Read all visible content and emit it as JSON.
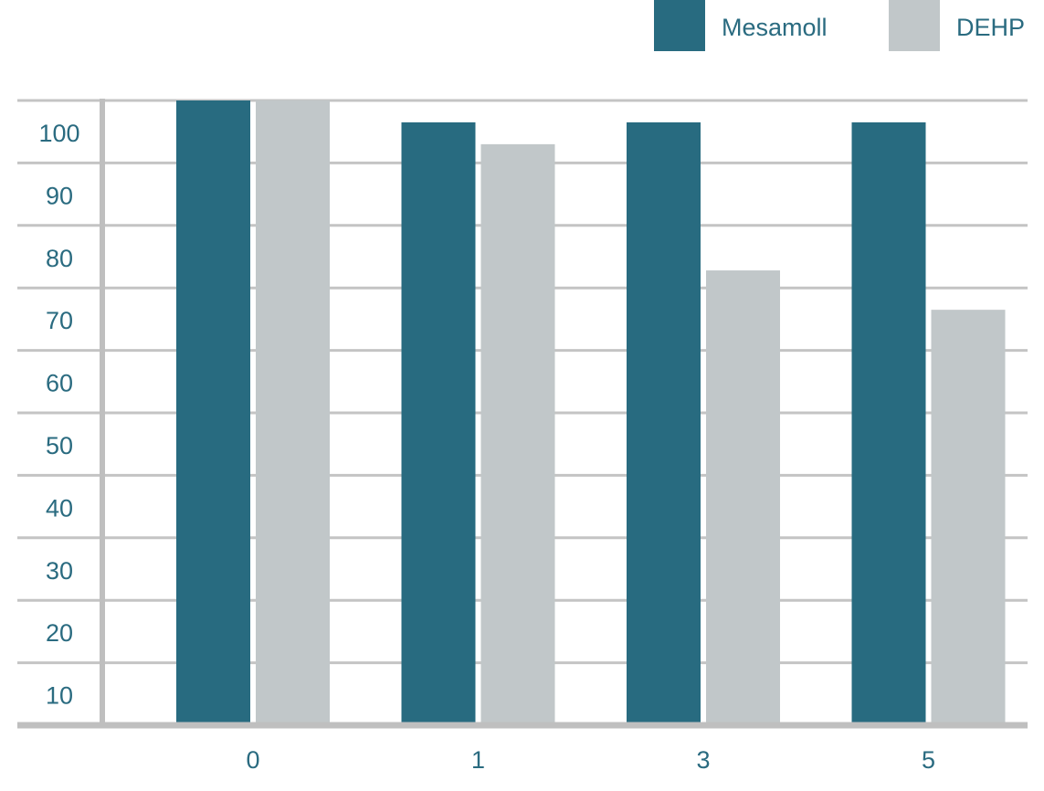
{
  "chart_data": {
    "type": "bar",
    "categories": [
      "0",
      "1",
      "3",
      "5"
    ],
    "series": [
      {
        "name": "Mesamoll",
        "color": "#286b80",
        "values": [
          100,
          96.5,
          96.5,
          96.5
        ]
      },
      {
        "name": "DEHP",
        "color": "#c1c7c9",
        "values": [
          100,
          93,
          72.8,
          66.5
        ]
      }
    ],
    "y_ticks": [
      "10",
      "20",
      "30",
      "40",
      "50",
      "60",
      "70",
      "80",
      "90",
      "100"
    ],
    "ylim": [
      0,
      100
    ],
    "title": "",
    "xlabel": "",
    "ylabel": "",
    "grid": true,
    "legend_position": "top-right"
  },
  "colors": {
    "gridline": "#c4c4c4",
    "axis": "#bfbfbf",
    "label_text": "#2a6b80"
  }
}
